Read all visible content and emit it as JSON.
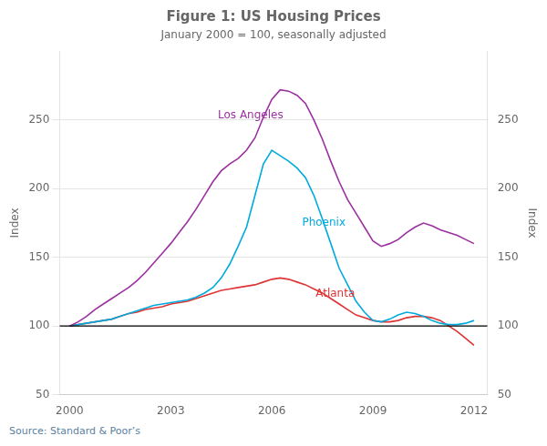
{
  "chart_data": {
    "type": "line",
    "title": "Figure 1: US Housing Prices",
    "subtitle": "January 2000 = 100, seasonally adjusted",
    "ylabel": "Index",
    "y2label": "Index",
    "source": "Source:    Standard & Poor’s",
    "source_color": "#5a7fa0",
    "grid": "y",
    "xlim": [
      1999.7,
      2012.4
    ],
    "xticks": [
      2000,
      2003,
      2006,
      2009,
      2012
    ],
    "ylim": [
      50,
      300
    ],
    "yticks": [
      50,
      100,
      150,
      200,
      250
    ],
    "y2lim": [
      50,
      300
    ],
    "y2ticks": [
      50,
      100,
      150,
      200,
      250
    ],
    "hline": 100,
    "x": [
      2000.0,
      2000.25,
      2000.5,
      2000.75,
      2001.0,
      2001.25,
      2001.5,
      2001.75,
      2002.0,
      2002.25,
      2002.5,
      2002.75,
      2003.0,
      2003.25,
      2003.5,
      2003.75,
      2004.0,
      2004.25,
      2004.5,
      2004.75,
      2005.0,
      2005.25,
      2005.5,
      2005.75,
      2006.0,
      2006.25,
      2006.5,
      2006.75,
      2007.0,
      2007.25,
      2007.5,
      2007.75,
      2008.0,
      2008.25,
      2008.5,
      2008.75,
      2009.0,
      2009.25,
      2009.5,
      2009.75,
      2010.0,
      2010.25,
      2010.5,
      2010.75,
      2011.0,
      2011.25,
      2011.5,
      2011.75,
      2012.0
    ],
    "series": [
      {
        "name": "Los Angeles",
        "color": "#9B30A0",
        "values": [
          100,
          103,
          107,
          112,
          116,
          120,
          124,
          128,
          133,
          139,
          146,
          153,
          160,
          168,
          176,
          185,
          195,
          205,
          213,
          218,
          222,
          228,
          237,
          252,
          265,
          272,
          271,
          268,
          262,
          250,
          236,
          220,
          205,
          192,
          182,
          172,
          162,
          158,
          160,
          163,
          168,
          172,
          175,
          173,
          170,
          168,
          166,
          163,
          160
        ]
      },
      {
        "name": "Phoenix",
        "color": "#00AADD",
        "values": [
          100,
          101,
          102,
          103,
          104,
          105,
          107,
          109,
          111,
          113,
          115,
          116,
          117,
          118,
          119,
          121,
          124,
          128,
          135,
          145,
          158,
          172,
          195,
          218,
          228,
          224,
          220,
          215,
          208,
          195,
          178,
          160,
          142,
          130,
          118,
          110,
          104,
          103,
          105,
          108,
          110,
          109,
          107,
          104,
          102,
          101,
          101,
          102,
          104
        ]
      },
      {
        "name": "Atlanta",
        "color": "#DD3333",
        "values": [
          100,
          101,
          102,
          103,
          104,
          105,
          107,
          109,
          110,
          112,
          113,
          114,
          116,
          117,
          118,
          120,
          122,
          124,
          126,
          127,
          128,
          129,
          130,
          132,
          134,
          135,
          134,
          132,
          130,
          127,
          124,
          120,
          116,
          112,
          108,
          106,
          104,
          103,
          103,
          104,
          106,
          107,
          107,
          106,
          104,
          100,
          96,
          91,
          86
        ]
      }
    ],
    "annotations": [
      {
        "text": "Los Angeles",
        "x": 2004.4,
        "y": 248,
        "color": "#9B30A0"
      },
      {
        "text": "Phoenix",
        "x": 2006.9,
        "y": 170,
        "color": "#00AADD"
      },
      {
        "text": "Atlanta",
        "x": 2007.3,
        "y": 118,
        "color": "#DD3333"
      }
    ]
  }
}
